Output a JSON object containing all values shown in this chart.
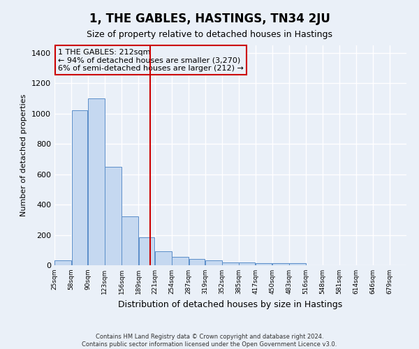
{
  "title": "1, THE GABLES, HASTINGS, TN34 2JU",
  "subtitle": "Size of property relative to detached houses in Hastings",
  "xlabel": "Distribution of detached houses by size in Hastings",
  "ylabel": "Number of detached properties",
  "footer_line1": "Contains HM Land Registry data © Crown copyright and database right 2024.",
  "footer_line2": "Contains public sector information licensed under the Open Government Licence v3.0.",
  "annotation_line1": "1 THE GABLES: 212sqm",
  "annotation_line2": "← 94% of detached houses are smaller (3,270)",
  "annotation_line3": "6% of semi-detached houses are larger (212) →",
  "property_size_sqm": 212,
  "bins": [
    25,
    58,
    90,
    123,
    156,
    189,
    221,
    254,
    287,
    319,
    352,
    385,
    417,
    450,
    483,
    516,
    548,
    581,
    614,
    646,
    679
  ],
  "counts": [
    30,
    1020,
    1100,
    650,
    320,
    185,
    90,
    55,
    40,
    30,
    20,
    20,
    15,
    15,
    12,
    0,
    0,
    0,
    0,
    0
  ],
  "bar_color": "#c5d8f0",
  "bar_edge_color": "#5b8ec9",
  "vline_color": "#cc0000",
  "annotation_box_edge_color": "#cc0000",
  "background_color": "#eaf0f8",
  "grid_color": "#ffffff",
  "ylim": [
    0,
    1450
  ],
  "yticks": [
    0,
    200,
    400,
    600,
    800,
    1000,
    1200,
    1400
  ],
  "title_fontsize": 12,
  "subtitle_fontsize": 9,
  "ylabel_fontsize": 8,
  "xlabel_fontsize": 9,
  "ytick_fontsize": 8,
  "xtick_fontsize": 6.5,
  "footer_fontsize": 6,
  "annotation_fontsize": 8
}
